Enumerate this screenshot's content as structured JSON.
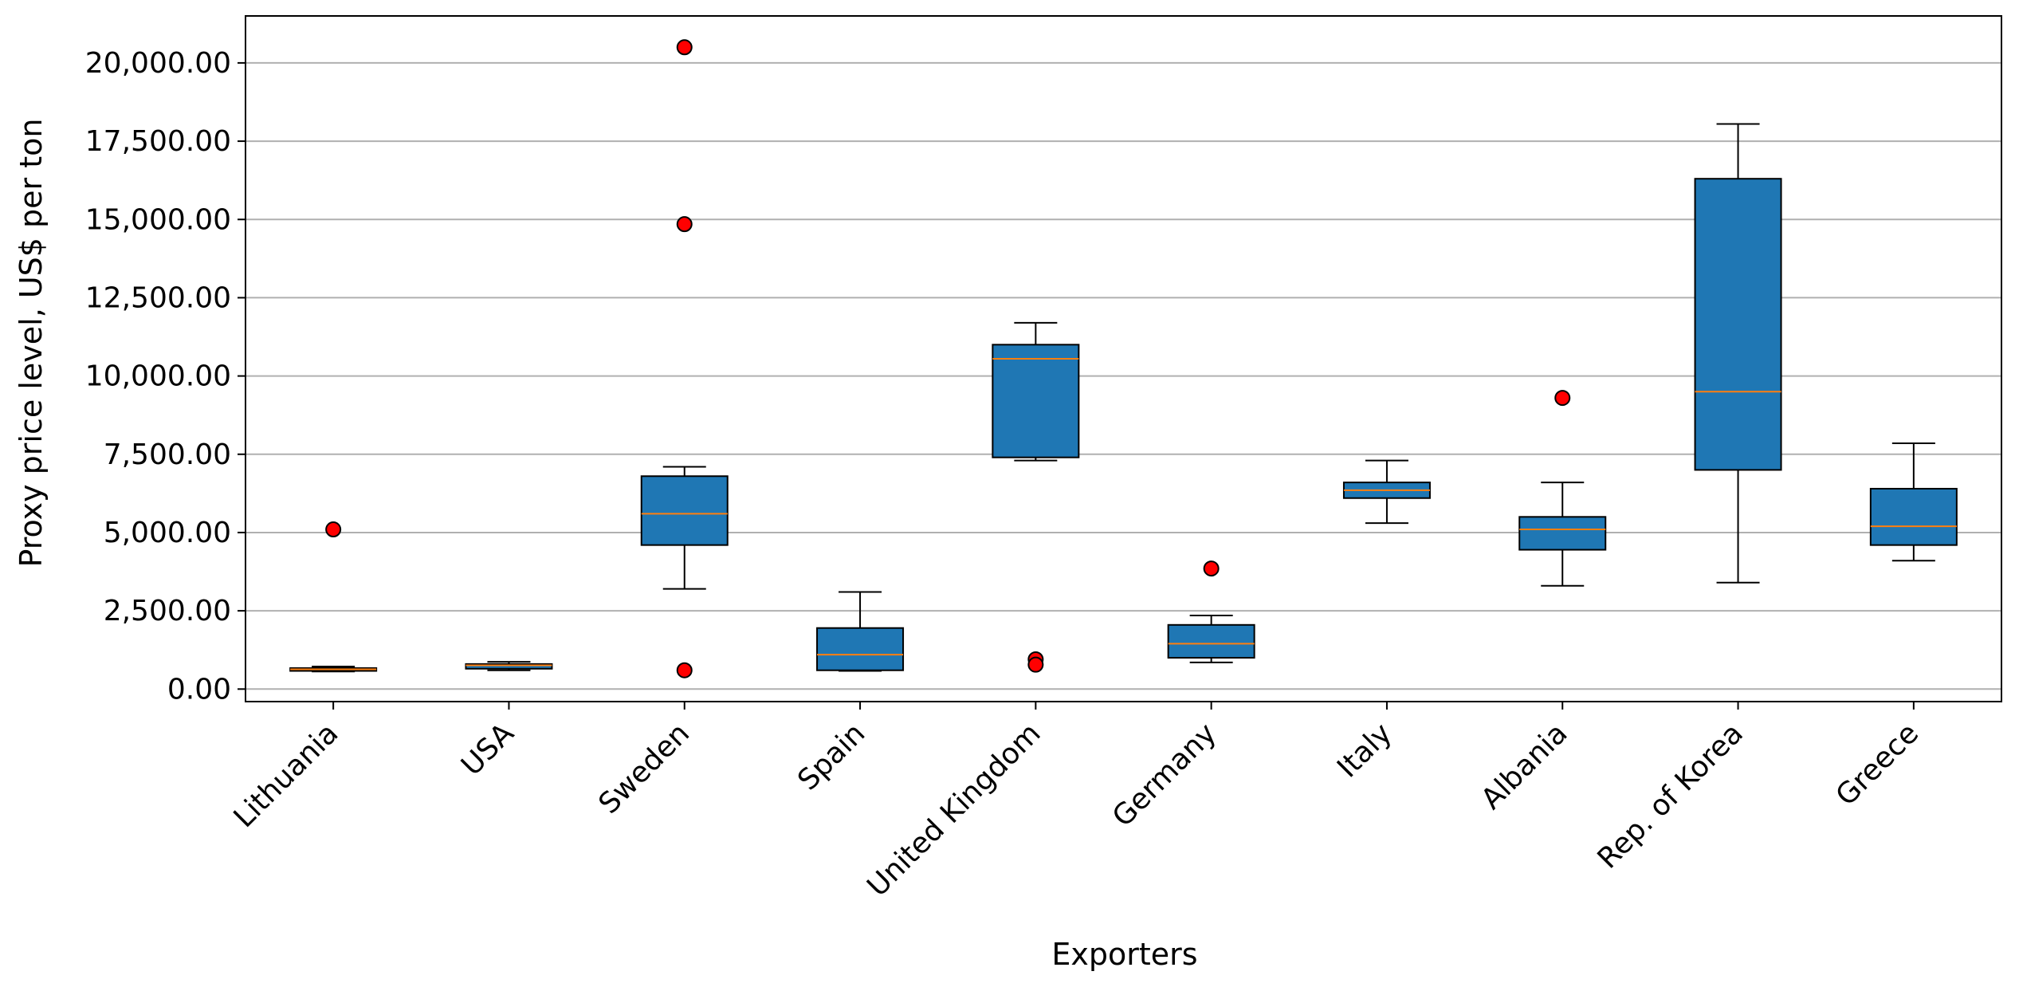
{
  "chart_data": {
    "type": "box",
    "title": "",
    "xlabel": "Exporters",
    "ylabel": "Proxy price level, US$ per ton",
    "ylim": [
      -400,
      21500
    ],
    "yticks": [
      0,
      2500,
      5000,
      7500,
      10000,
      12500,
      15000,
      17500,
      20000
    ],
    "ytick_labels": [
      "0.00",
      "2,500.00",
      "5,000.00",
      "7,500.00",
      "10,000.00",
      "12,500.00",
      "15,000.00",
      "17,500.00",
      "20,000.00"
    ],
    "grid": "horizontal",
    "colors": {
      "box": "#1f77b4",
      "median": "#ff7f0e",
      "outlier": "#ff0000",
      "grid": "#b0b0b0"
    },
    "categories": [
      "Lithuania",
      "USA",
      "Sweden",
      "Spain",
      "United Kingdom",
      "Germany",
      "Italy",
      "Albania",
      "Rep. of Korea",
      "Greece"
    ],
    "boxes": [
      {
        "category": "Lithuania",
        "whisker_low": 560,
        "q1": 580,
        "median": 630,
        "q3": 670,
        "whisker_high": 720,
        "outliers": [
          5100
        ]
      },
      {
        "category": "USA",
        "whisker_low": 600,
        "q1": 650,
        "median": 760,
        "q3": 800,
        "whisker_high": 870,
        "outliers": []
      },
      {
        "category": "Sweden",
        "whisker_low": 3200,
        "q1": 4600,
        "median": 5600,
        "q3": 6800,
        "whisker_high": 7100,
        "outliers": [
          20500,
          14850,
          600
        ]
      },
      {
        "category": "Spain",
        "whisker_low": 580,
        "q1": 600,
        "median": 1100,
        "q3": 1950,
        "whisker_high": 3100,
        "outliers": []
      },
      {
        "category": "United Kingdom",
        "whisker_low": 7300,
        "q1": 7400,
        "median": 10550,
        "q3": 11000,
        "whisker_high": 11700,
        "outliers": [
          950,
          780
        ]
      },
      {
        "category": "Germany",
        "whisker_low": 850,
        "q1": 1000,
        "median": 1450,
        "q3": 2050,
        "whisker_high": 2350,
        "outliers": [
          3850
        ]
      },
      {
        "category": "Italy",
        "whisker_low": 5300,
        "q1": 6100,
        "median": 6350,
        "q3": 6600,
        "whisker_high": 7300,
        "outliers": []
      },
      {
        "category": "Albania",
        "whisker_low": 3300,
        "q1": 4450,
        "median": 5100,
        "q3": 5500,
        "whisker_high": 6600,
        "outliers": [
          9300
        ]
      },
      {
        "category": "Rep. of Korea",
        "whisker_low": 3400,
        "q1": 7000,
        "median": 9500,
        "q3": 16300,
        "whisker_high": 18050,
        "outliers": []
      },
      {
        "category": "Greece",
        "whisker_low": 4100,
        "q1": 4600,
        "median": 5200,
        "q3": 6400,
        "whisker_high": 7850,
        "outliers": []
      }
    ]
  }
}
